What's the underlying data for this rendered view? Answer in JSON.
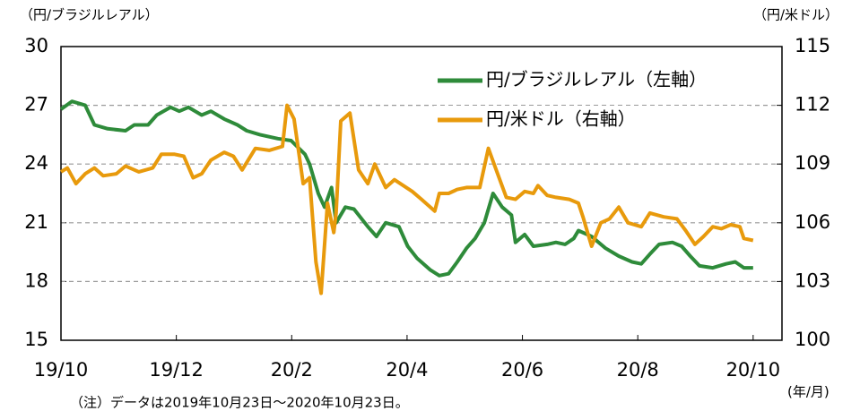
{
  "chart_data": {
    "type": "line",
    "y_label": "（円/ブラジルレアル）",
    "y2_label": "（円/米ドル）",
    "x_label": "(年/月)",
    "note": "（注）データは2019年10月23日～2020年10月23日。",
    "xlim": [
      0,
      12.5
    ],
    "xticks": [
      {
        "value": 0,
        "label": "19/10"
      },
      {
        "value": 2,
        "label": "19/12"
      },
      {
        "value": 4,
        "label": "20/2"
      },
      {
        "value": 6,
        "label": "20/4"
      },
      {
        "value": 8,
        "label": "20/6"
      },
      {
        "value": 10,
        "label": "20/8"
      },
      {
        "value": 12,
        "label": "20/10"
      }
    ],
    "ylim": [
      15,
      30
    ],
    "yticks": [
      15,
      18,
      21,
      24,
      27,
      30
    ],
    "y2lim": [
      100,
      115
    ],
    "y2ticks": [
      100,
      103,
      106,
      109,
      112,
      115
    ],
    "grid": true,
    "legend": "upper right",
    "series": [
      {
        "name": "円/ブラジルレアル（左軸）",
        "color": "#2e8b3a",
        "axis": "y",
        "x": [
          0,
          0.19,
          0.42,
          0.58,
          0.81,
          1.12,
          1.27,
          1.51,
          1.66,
          1.9,
          2.05,
          2.21,
          2.44,
          2.6,
          2.83,
          3.06,
          3.22,
          3.45,
          3.76,
          3.99,
          4.23,
          4.31,
          4.46,
          4.57,
          4.69,
          4.77,
          4.93,
          5.08,
          5.32,
          5.47,
          5.63,
          5.86,
          6.01,
          6.17,
          6.4,
          6.56,
          6.72,
          6.87,
          7.03,
          7.18,
          7.34,
          7.49,
          7.65,
          7.81,
          7.88,
          8.04,
          8.19,
          8.43,
          8.58,
          8.74,
          8.89,
          8.97,
          9.2,
          9.44,
          9.67,
          9.9,
          10.06,
          10.21,
          10.37,
          10.6,
          10.76,
          10.91,
          11.07,
          11.3,
          11.53,
          11.69,
          11.84,
          12
        ],
        "values": [
          26.8,
          27.2,
          27,
          26,
          25.8,
          25.7,
          26,
          26,
          26.5,
          26.9,
          26.7,
          26.9,
          26.5,
          26.7,
          26.3,
          26.0,
          25.7,
          25.5,
          25.3,
          25.2,
          24.5,
          24,
          22.5,
          21.8,
          22.8,
          21,
          21.8,
          21.7,
          20.8,
          20.3,
          21,
          20.8,
          19.8,
          19.2,
          18.6,
          18.3,
          18.4,
          19,
          19.7,
          20.2,
          21,
          22.5,
          21.8,
          21.4,
          20,
          20.4,
          19.8,
          19.9,
          20,
          19.9,
          20.2,
          20.6,
          20.3,
          19.7,
          19.3,
          19.0,
          18.9,
          19.4,
          19.9,
          20,
          19.8,
          19.3,
          18.8,
          18.7,
          18.9,
          19.0,
          18.7,
          18.7
        ]
      },
      {
        "name": "円/米ドル（右軸）",
        "color": "#e89a0c",
        "axis": "y2",
        "x": [
          0,
          0.11,
          0.26,
          0.42,
          0.58,
          0.73,
          0.96,
          1.12,
          1.35,
          1.59,
          1.74,
          1.97,
          2.13,
          2.29,
          2.44,
          2.6,
          2.83,
          2.99,
          3.14,
          3.37,
          3.61,
          3.84,
          3.92,
          4.04,
          4.2,
          4.31,
          4.42,
          4.51,
          4.62,
          4.73,
          4.77,
          4.85,
          5.01,
          5.16,
          5.32,
          5.44,
          5.63,
          5.78,
          6.09,
          6.25,
          6.48,
          6.56,
          6.72,
          6.87,
          7.03,
          7.26,
          7.41,
          7.57,
          7.72,
          7.88,
          8.04,
          8.19,
          8.27,
          8.43,
          8.58,
          8.81,
          8.97,
          9.05,
          9.2,
          9.36,
          9.51,
          9.67,
          9.83,
          10.06,
          10.21,
          10.45,
          10.68,
          10.83,
          10.99,
          11.14,
          11.3,
          11.45,
          11.61,
          11.77,
          11.84,
          12
        ],
        "values": [
          108.6,
          108.8,
          108,
          108.5,
          108.8,
          108.4,
          108.5,
          108.9,
          108.6,
          108.8,
          109.5,
          109.5,
          109.4,
          108.3,
          108.5,
          109.2,
          109.6,
          109.4,
          108.7,
          109.8,
          109.7,
          109.9,
          112,
          111.3,
          108,
          108.3,
          104,
          102.4,
          107,
          105.5,
          106.5,
          111.2,
          111.6,
          108.7,
          108,
          109,
          107.8,
          108.2,
          107.6,
          107.2,
          106.6,
          107.5,
          107.5,
          107.7,
          107.8,
          107.8,
          109.8,
          108.5,
          107.3,
          107.2,
          107.6,
          107.5,
          107.9,
          107.4,
          107.3,
          107.2,
          107,
          106.3,
          104.8,
          106,
          106.2,
          106.8,
          106,
          105.8,
          106.5,
          106.3,
          106.2,
          105.6,
          104.9,
          105.3,
          105.8,
          105.7,
          105.9,
          105.8,
          105.2,
          105.1
        ]
      }
    ]
  }
}
